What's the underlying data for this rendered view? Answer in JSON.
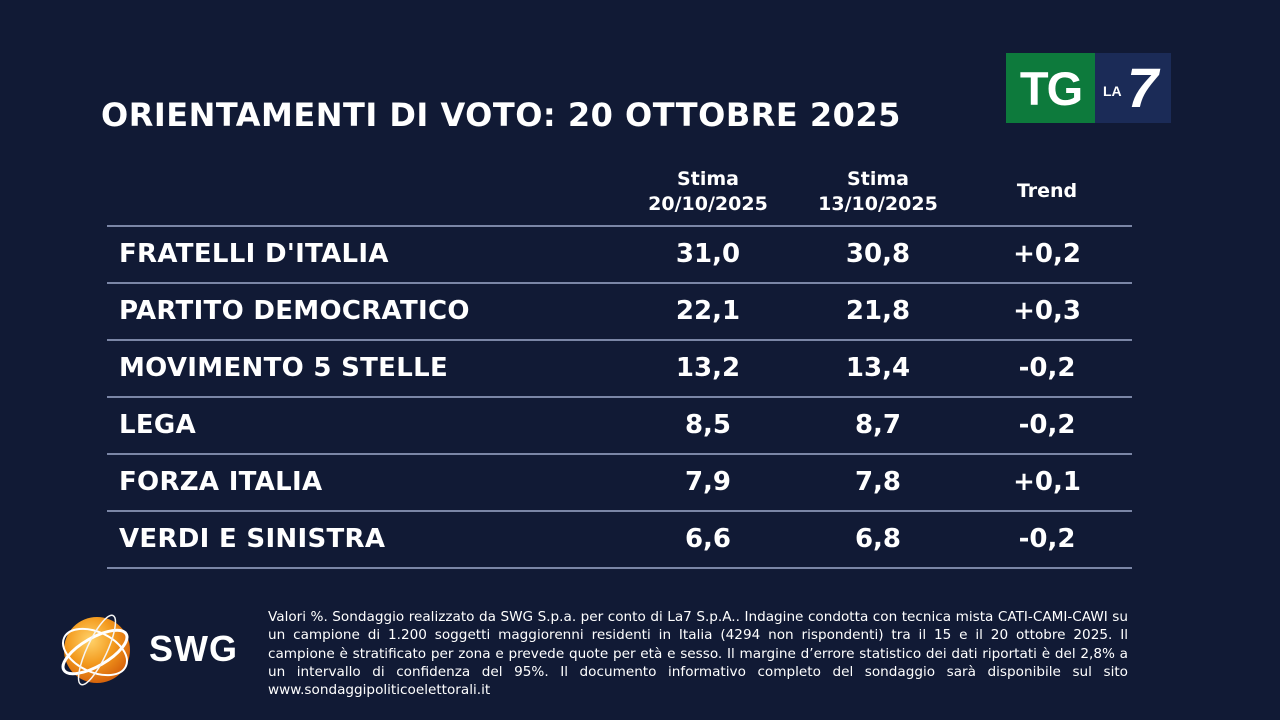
{
  "title": "ORIENTAMENTI DI VOTO: 20 OTTOBRE 2025",
  "broadcaster_logo": {
    "tg": "TG",
    "la": "LA",
    "seven": "7",
    "icon": "tg-la7-logo"
  },
  "colors": {
    "background": "#111a35",
    "divider": "#7b86a6",
    "tg_green": "#0d7a3c",
    "la7_blue": "#1b2b57",
    "swg_orange": "#f39a1e"
  },
  "chart_data": {
    "type": "table",
    "columns": [
      {
        "line1": "Stima",
        "line2": "20/10/2025"
      },
      {
        "line1": "Stima",
        "line2": "13/10/2025"
      },
      {
        "line1": "Trend",
        "line2": ""
      }
    ],
    "rows": [
      {
        "party": "FRATELLI D'ITALIA",
        "current": "31,0",
        "previous": "30,8",
        "trend": "+0,2"
      },
      {
        "party": "PARTITO DEMOCRATICO",
        "current": "22,1",
        "previous": "21,8",
        "trend": "+0,3"
      },
      {
        "party": "MOVIMENTO 5 STELLE",
        "current": "13,2",
        "previous": "13,4",
        "trend": "-0,2"
      },
      {
        "party": "LEGA",
        "current": "8,5",
        "previous": "8,7",
        "trend": "-0,2"
      },
      {
        "party": "FORZA ITALIA",
        "current": "7,9",
        "previous": "7,8",
        "trend": "+0,1"
      },
      {
        "party": "VERDI E SINISTRA",
        "current": "6,6",
        "previous": "6,8",
        "trend": "-0,2"
      }
    ]
  },
  "pollster": {
    "name": "SWG",
    "icon": "swg-globe-logo"
  },
  "footnote": "Valori %. Sondaggio realizzato da SWG S.p.a. per conto di La7 S.p.A.. Indagine condotta con tecnica mista CATI-CAMI-CAWI su un campione di 1.200 soggetti maggiorenni residenti in Italia (4294 non rispondenti) tra il 15 e il 20 ottobre 2025. Il campione è stratificato per zona e prevede quote per età e sesso. Il margine d’errore statistico dei dati riportati è del 2,8% a un intervallo di confidenza del 95%. Il documento informativo completo del sondaggio sarà disponibile sul sito www.sondaggipoliticoelettorali.it"
}
